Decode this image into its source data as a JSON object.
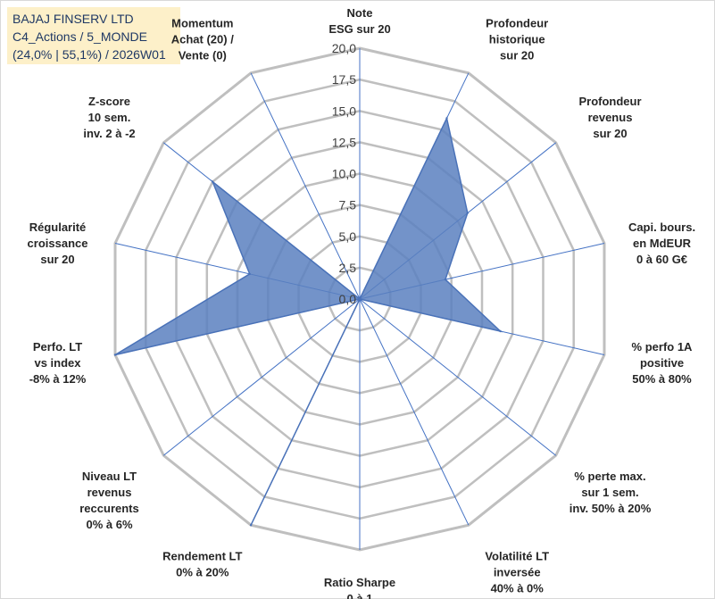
{
  "chart_data": {
    "type": "radar",
    "title_lines": [
      "BAJAJ FINSERV LTD",
      "C4_Actions / 5_MONDE",
      "(24,0% | 55,1%) / 2026W01"
    ],
    "range": [
      0,
      20
    ],
    "ticks": [
      "0,0",
      "2,5",
      "5,0",
      "7,5",
      "10,0",
      "12,5",
      "15,0",
      "17,5",
      "20,0"
    ],
    "tick_values": [
      0,
      2.5,
      5,
      7.5,
      10,
      12.5,
      15,
      17.5,
      20
    ],
    "grid": true,
    "axes": [
      {
        "label": [
          "Note",
          "ESG sur 20"
        ],
        "value": 0
      },
      {
        "label": [
          "Profondeur",
          "historique",
          "sur 20"
        ],
        "value": 16
      },
      {
        "label": [
          "Profondeur",
          "revenus",
          "sur 20"
        ],
        "value": 11
      },
      {
        "label": [
          "Capi. bours.",
          "en MdEUR",
          "0 à 60 G€"
        ],
        "value": 7
      },
      {
        "label": [
          "% perfo 1A",
          "positive",
          "50% à 80%"
        ],
        "value": 11.5
      },
      {
        "label": [
          "% perte max.",
          "sur 1 sem.",
          "inv. 50% à 20%"
        ],
        "value": 0
      },
      {
        "label": [
          "Volatilité LT",
          "inversée",
          "40% à 0%"
        ],
        "value": 0
      },
      {
        "label": [
          "Ratio Sharpe",
          "0 à 1"
        ],
        "value": 0
      },
      {
        "label": [
          "Rendement LT",
          "0% à 20%"
        ],
        "value": 20
      },
      {
        "label": [
          "Niveau LT",
          "revenus",
          "reccurents",
          "0% à 6%"
        ],
        "value": 0
      },
      {
        "label": [
          "Perfo. LT",
          "vs index",
          "-8% à 12%"
        ],
        "value": 20
      },
      {
        "label": [
          "Régularité",
          "croissance",
          "sur 20"
        ],
        "value": 9
      },
      {
        "label": [
          "Z-score",
          "10 sem.",
          "inv. 2 à -2"
        ],
        "value": 15
      },
      {
        "label": [
          "Momentum",
          "Achat (20) /",
          "Vente (0)"
        ],
        "value": 0
      }
    ],
    "series_color": "#4a72b8",
    "fill_color": "#5b80bf",
    "grid_color": "#bfbfbf",
    "spoke_color": "#4472c4"
  }
}
